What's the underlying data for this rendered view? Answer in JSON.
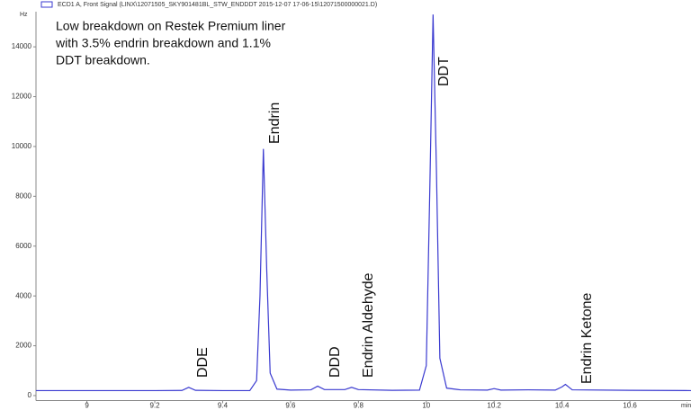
{
  "chart_data": {
    "type": "line",
    "y_label": "Hz",
    "x_label": "min",
    "annotation": [
      "Low breakdown on Restek Premium liner",
      "with 3.5% endrin breakdown and 1.1%",
      "DDT breakdown."
    ],
    "peak_labels": [
      "DDE",
      "Endrin",
      "DDD",
      "Endrin Aldehyde",
      "DDT",
      "Endrin Ketone"
    ],
    "x": [
      8.85,
      9.0,
      9.2,
      9.28,
      9.3,
      9.32,
      9.4,
      9.48,
      9.5,
      9.51,
      9.52,
      9.53,
      9.54,
      9.56,
      9.6,
      9.66,
      9.68,
      9.7,
      9.76,
      9.78,
      9.8,
      9.9,
      9.98,
      10.0,
      10.01,
      10.02,
      10.03,
      10.04,
      10.06,
      10.1,
      10.18,
      10.2,
      10.22,
      10.3,
      10.38,
      10.4,
      10.41,
      10.43,
      10.6,
      10.78
    ],
    "series": [
      {
        "name": "ECD1 A, Front Signal (LINX\\12071505_SKY901481BL_STW_ENDDDT 2015-12-07 17-06-15\\12071500000021.D)",
        "color": "#3a3ad0",
        "values": [
          200,
          200,
          200,
          205,
          330,
          210,
          200,
          200,
          600,
          4000,
          9900,
          5000,
          900,
          260,
          220,
          230,
          380,
          240,
          240,
          330,
          240,
          210,
          220,
          1200,
          8000,
          15300,
          9000,
          1500,
          300,
          230,
          220,
          280,
          220,
          230,
          220,
          350,
          450,
          230,
          210,
          200
        ]
      }
    ],
    "xlim": [
      8.85,
      10.78
    ],
    "ylim": [
      -200,
      15700
    ],
    "xticks": [
      9,
      9.2,
      9.4,
      9.6,
      9.8,
      10,
      10.2,
      10.4,
      10.6
    ],
    "yticks": [
      0,
      2000,
      4000,
      6000,
      8000,
      10000,
      12000,
      14000
    ]
  }
}
